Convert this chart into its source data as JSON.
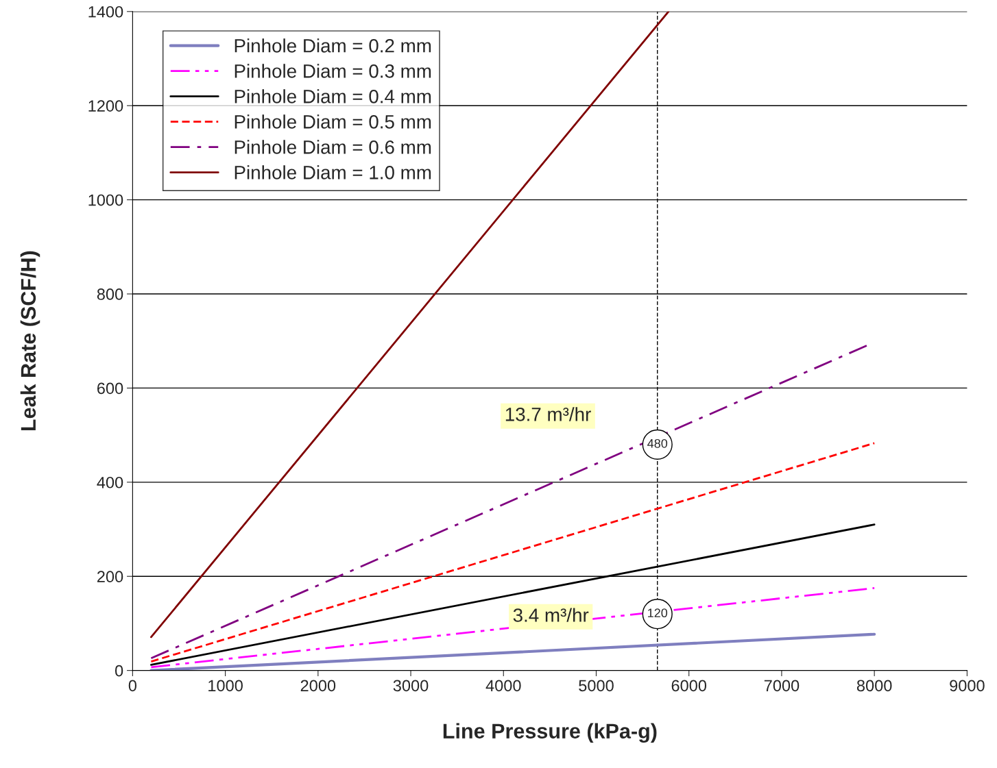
{
  "chart_data": {
    "type": "line",
    "xlabel": "Line Pressure (kPa-g)",
    "ylabel": "Leak Rate (SCF/H)",
    "xlim": [
      0,
      9000
    ],
    "xticks": [
      0,
      1000,
      2000,
      3000,
      4000,
      5000,
      6000,
      7000,
      8000,
      9000
    ],
    "ylim": [
      0,
      1400
    ],
    "yticks": [
      0,
      200,
      400,
      600,
      800,
      1000,
      1200,
      1400
    ],
    "grid": "y",
    "legend": "top left",
    "marker": "none",
    "series": [
      {
        "name": "Pinhole Diam = 0.2 mm",
        "color": "#7f7fbf",
        "line_style": "solid",
        "x": [
          200,
          8000
        ],
        "values": [
          0,
          77
        ]
      },
      {
        "name": "Pinhole Diam = 0.3 mm",
        "color": "#ff00ff",
        "line_style": "dashdotdot",
        "x": [
          200,
          8000
        ],
        "values": [
          7,
          175
        ]
      },
      {
        "name": "Pinhole Diam = 0.4 mm",
        "color": "#000000",
        "line_style": "solid",
        "x": [
          200,
          8000
        ],
        "values": [
          12,
          310
        ]
      },
      {
        "name": "Pinhole Diam = 0.5 mm",
        "color": "#ff0000",
        "line_style": "dashed",
        "x": [
          200,
          8000
        ],
        "values": [
          19,
          483
        ]
      },
      {
        "name": "Pinhole Diam = 0.6 mm",
        "color": "#800080",
        "line_style": "dashdot",
        "x": [
          200,
          7950
        ],
        "values": [
          26,
          693
        ]
      },
      {
        "name": "Pinhole Diam = 1.0 mm",
        "color": "#800000",
        "line_style": "solid",
        "x": [
          200,
          5780
        ],
        "values": [
          71,
          1400
        ]
      }
    ],
    "ref_lines": [
      {
        "axis": "x",
        "value": 5660,
        "color": "#000000",
        "line_style": "dashed"
      }
    ],
    "annotations": [
      "13.7 m³/hr",
      {
        "text": "480",
        "x": 5660,
        "y": 480
      },
      "3.4 m³/hr",
      {
        "text": "120",
        "x": 5660,
        "y": 120
      }
    ]
  }
}
